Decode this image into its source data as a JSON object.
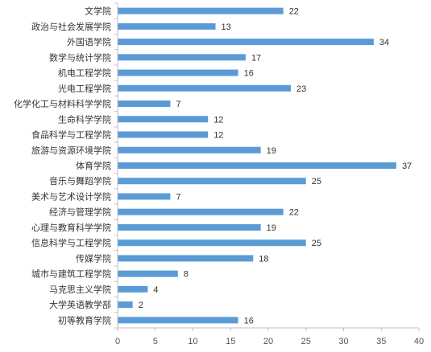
{
  "chart_data": {
    "type": "bar",
    "orientation": "horizontal",
    "title": "",
    "xlabel": "",
    "ylabel": "",
    "categories": [
      "文学院",
      "政治与社会发展学院",
      "外国语学院",
      "数学与统计学院",
      "机电工程学院",
      "光电工程学院",
      "化学化工与材料科学学院",
      "生命科学学院",
      "食品科学与工程学院",
      "旅游与资源环境学院",
      "体育学院",
      "音乐与舞蹈学院",
      "美术与艺术设计学院",
      "经济与管理学院",
      "心理与教育科学学院",
      "信息科学与工程学院",
      "传媒学院",
      "城市与建筑工程学院",
      "马克思主义学院",
      "大学英语教学部",
      "初等教育学院"
    ],
    "values": [
      22,
      13,
      34,
      17,
      16,
      23,
      7,
      12,
      12,
      19,
      37,
      25,
      7,
      22,
      19,
      25,
      18,
      8,
      4,
      2,
      16
    ],
    "xlim": [
      0,
      40
    ],
    "xticks": [
      0,
      5,
      10,
      15,
      20,
      25,
      30,
      35,
      40
    ],
    "data_labels": true,
    "grid": false,
    "legend": "none",
    "bar_color": "#5b9bd5",
    "axis_color": "#bfbfbf"
  }
}
